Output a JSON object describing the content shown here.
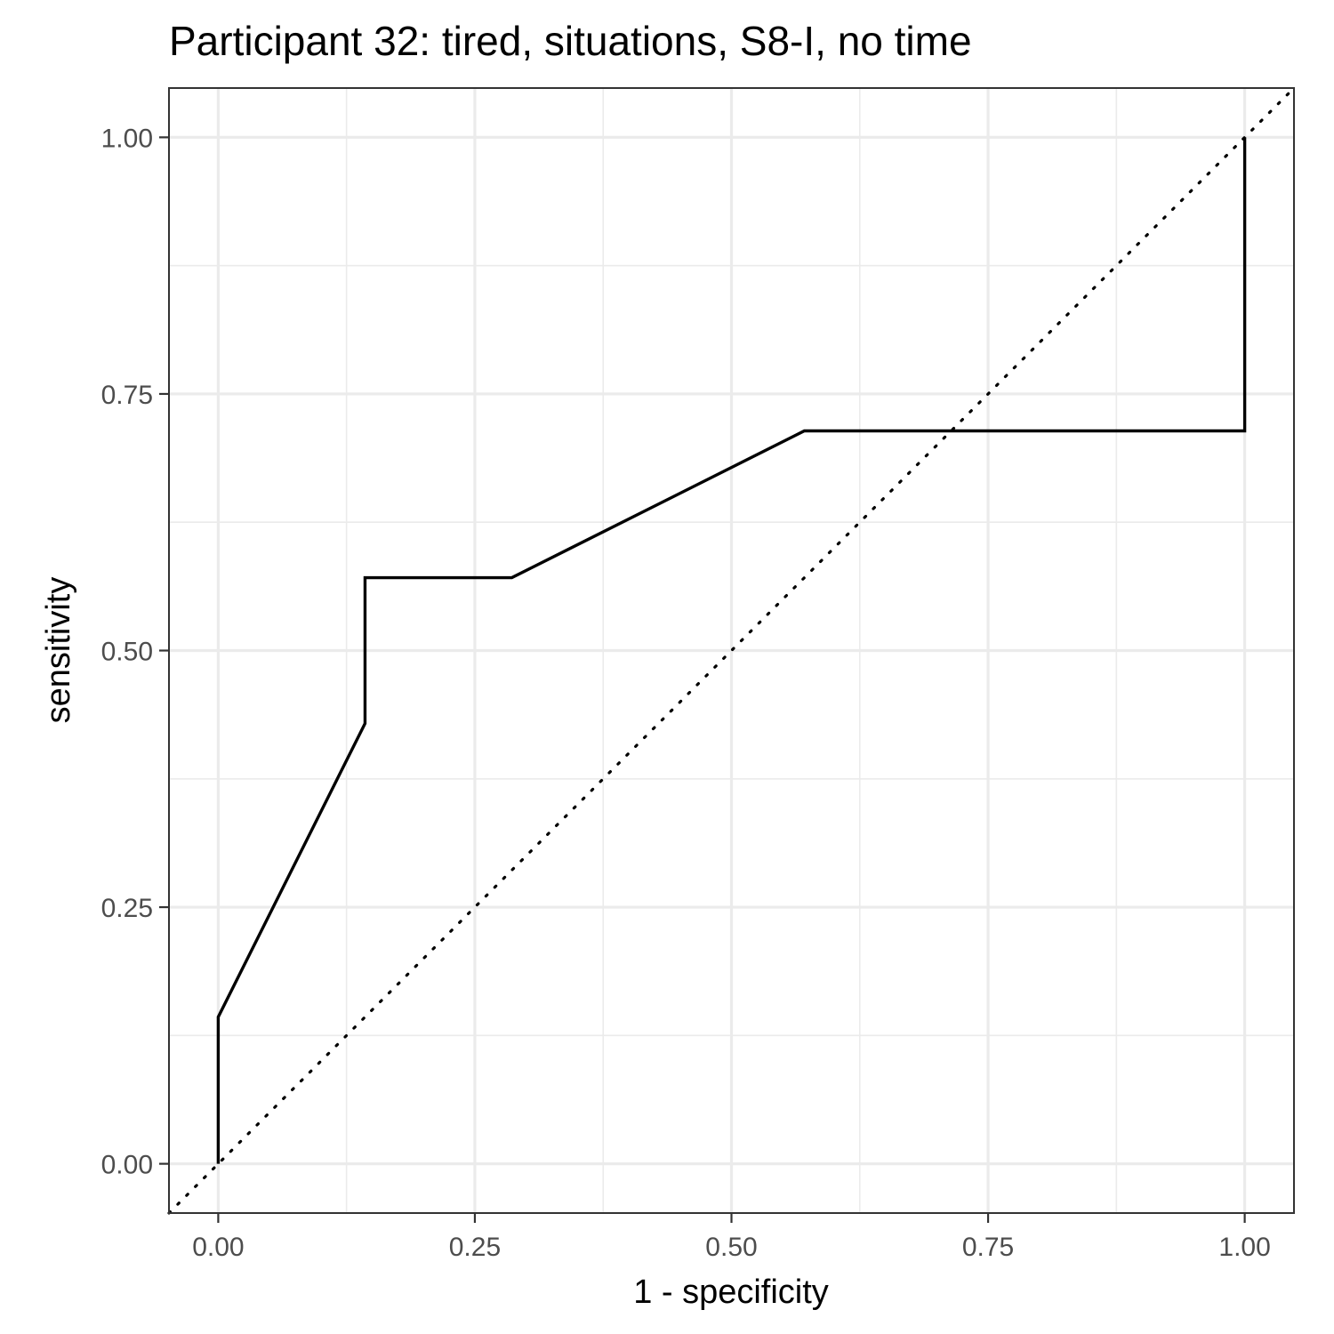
{
  "chart_data": {
    "type": "line",
    "title": "Participant 32: tired, situations, S8-I, no time",
    "xlabel": "1 - specificity",
    "ylabel": "sensitivity",
    "xlim": [
      -0.048,
      1.048
    ],
    "ylim": [
      -0.048,
      1.048
    ],
    "x_ticks": [
      "0.00",
      "0.25",
      "0.50",
      "0.75",
      "1.00"
    ],
    "y_ticks": [
      "0.00",
      "0.25",
      "0.50",
      "0.75",
      "1.00"
    ],
    "grid": true,
    "series": [
      {
        "x": [
          0,
          0,
          0.143,
          0.143,
          0.286,
          0.571,
          1.0,
          1.0
        ],
        "y": [
          0,
          0.143,
          0.429,
          0.571,
          0.571,
          0.714,
          0.714,
          1.0
        ]
      }
    ],
    "reference_line": {
      "x": [
        -0.048,
        1.048
      ],
      "y": [
        -0.048,
        1.048
      ],
      "style": "dotted"
    }
  }
}
